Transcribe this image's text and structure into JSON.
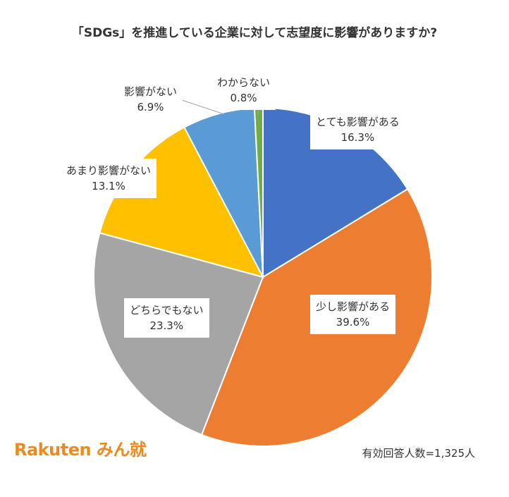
{
  "chart_data": {
    "type": "pie",
    "title": "「SDGs」を推進している企業に対して志望度に影響がありますか?",
    "slices": [
      {
        "label": "とても影響がある",
        "value": 16.3,
        "value_label": "16.3%",
        "color": "#4472c4"
      },
      {
        "label": "少し影響がある",
        "value": 39.6,
        "value_label": "39.6%",
        "color": "#ed7d31"
      },
      {
        "label": "どちらでもない",
        "value": 23.3,
        "value_label": "23.3%",
        "color": "#a5a5a5"
      },
      {
        "label": "あまり影響がない",
        "value": 13.1,
        "value_label": "13.1%",
        "color": "#ffc000"
      },
      {
        "label": "影響がない",
        "value": 6.9,
        "value_label": "6.9%",
        "color": "#5b9bd5"
      },
      {
        "label": "わからない",
        "value": 0.8,
        "value_label": "0.8%",
        "color": "#70ad47"
      }
    ],
    "start_angle_deg": 0,
    "direction": "clockwise"
  },
  "footer": {
    "logo": "Rakuten みん就",
    "respondents": "有効回答人数=1,325人"
  }
}
